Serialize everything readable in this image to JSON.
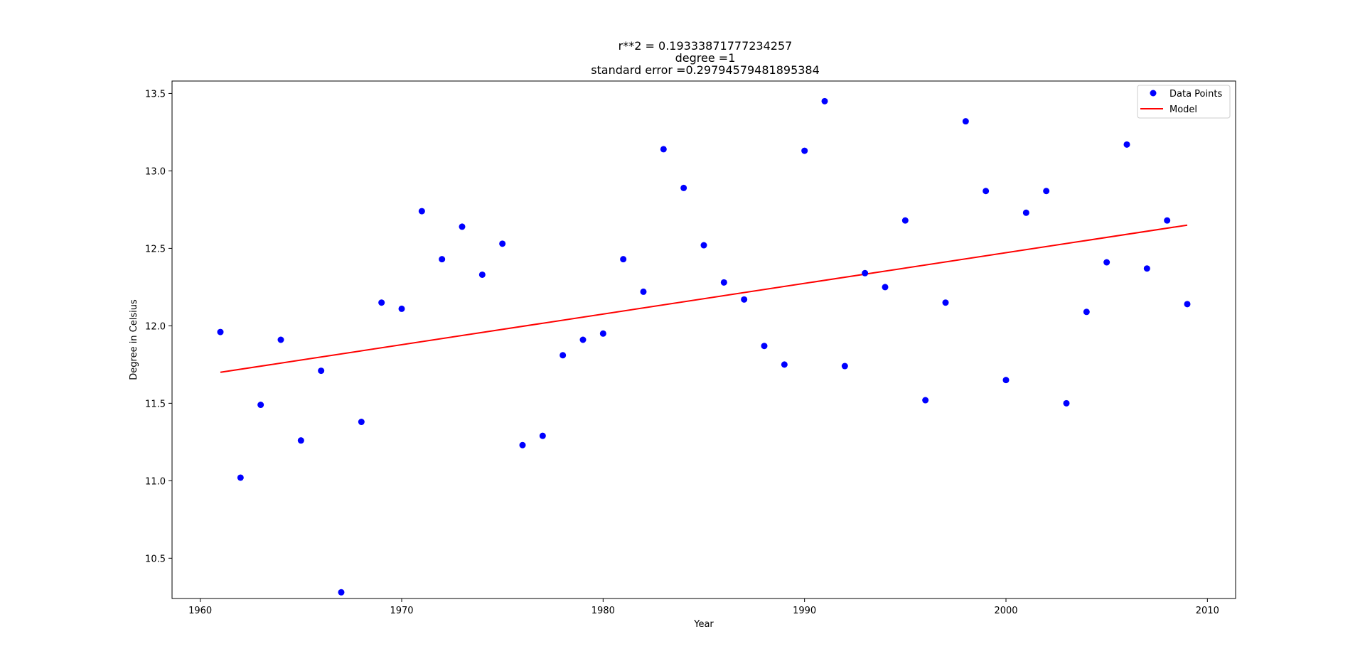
{
  "chart_data": {
    "type": "scatter",
    "title_lines": [
      "r**2 = 0.19333871777234257",
      "degree =1",
      "standard error =0.29794579481895384"
    ],
    "xlabel": "Year",
    "ylabel": "Degree in Celsius",
    "xlim": [
      1958.6,
      2011.4
    ],
    "ylim": [
      10.24,
      13.58
    ],
    "xticks": [
      1960,
      1970,
      1980,
      1990,
      2000,
      2010
    ],
    "yticks": [
      10.5,
      11.0,
      11.5,
      12.0,
      12.5,
      13.0,
      13.5
    ],
    "ytick_labels": [
      "10.5",
      "11.0",
      "11.5",
      "12.0",
      "12.5",
      "13.0",
      "13.5"
    ],
    "legend": {
      "position": "upper-right",
      "entries": [
        "Data Points",
        "Model"
      ]
    },
    "colors": {
      "points": "#0000ff",
      "model": "#ff0000"
    },
    "series": [
      {
        "name": "Data Points",
        "kind": "points",
        "x": [
          1961,
          1962,
          1963,
          1964,
          1965,
          1966,
          1967,
          1968,
          1969,
          1970,
          1971,
          1972,
          1973,
          1974,
          1975,
          1976,
          1977,
          1978,
          1979,
          1980,
          1981,
          1982,
          1983,
          1984,
          1985,
          1986,
          1987,
          1988,
          1989,
          1990,
          1991,
          1992,
          1993,
          1994,
          1995,
          1996,
          1997,
          1998,
          1999,
          2000,
          2001,
          2002,
          2003,
          2004,
          2005,
          2006,
          2007,
          2008,
          2009
        ],
        "y": [
          11.96,
          11.02,
          11.49,
          11.91,
          11.26,
          11.71,
          10.28,
          11.38,
          12.15,
          12.11,
          12.74,
          12.43,
          12.64,
          12.33,
          12.53,
          11.23,
          11.29,
          11.81,
          11.91,
          11.95,
          12.43,
          12.22,
          13.14,
          12.89,
          12.52,
          12.28,
          12.17,
          11.87,
          11.75,
          13.13,
          13.45,
          11.74,
          12.34,
          12.25,
          12.68,
          11.52,
          12.15,
          13.32,
          12.87,
          11.65,
          12.73,
          12.87,
          11.5,
          12.09,
          12.41,
          13.17,
          12.37,
          12.68,
          12.14
        ]
      },
      {
        "name": "Model",
        "kind": "line",
        "x": [
          1961,
          2009
        ],
        "y": [
          11.7,
          12.65
        ]
      }
    ]
  }
}
